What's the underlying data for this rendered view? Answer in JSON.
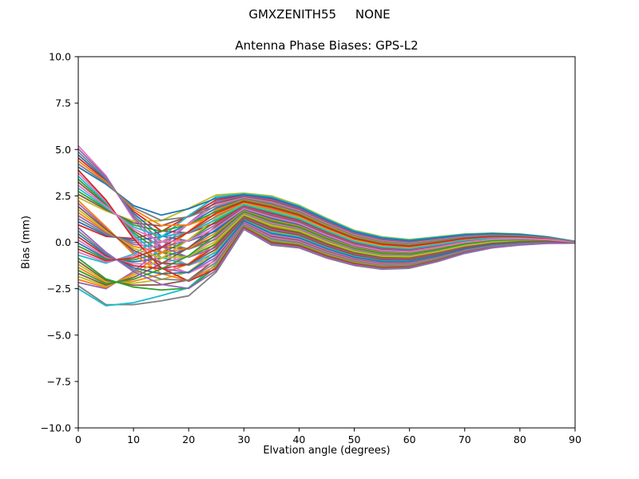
{
  "chart_data": {
    "type": "line",
    "suptitle": "GMXZENITH55     NONE",
    "title": "Antenna Phase Biases: GPS-L2",
    "xlabel": "Elvation angle (degrees)",
    "ylabel": "Bias (mm)",
    "xlim": [
      0,
      90
    ],
    "ylim": [
      -10,
      10
    ],
    "grid": false,
    "legend": "none",
    "background": "#ffffff",
    "xticks": [
      0,
      10,
      20,
      30,
      40,
      50,
      60,
      70,
      80,
      90
    ],
    "xtick_labels": [
      "0",
      "10",
      "20",
      "30",
      "40",
      "50",
      "60",
      "70",
      "80",
      "90"
    ],
    "yticks": [
      -10,
      -7.5,
      -5,
      -2.5,
      0,
      2.5,
      5,
      7.5,
      10
    ],
    "ytick_labels": [
      "−10.0",
      "−7.5",
      "−5.0",
      "−2.5",
      "0.0",
      "2.5",
      "5.0",
      "7.5",
      "10.0"
    ],
    "x": [
      0,
      5,
      10,
      15,
      20,
      25,
      30,
      35,
      40,
      45,
      50,
      55,
      60,
      65,
      70,
      75,
      80,
      85,
      90
    ],
    "envelope_top": [
      5.2,
      4.2,
      2.7,
      1.9,
      2.1,
      2.55,
      2.65,
      2.5,
      2.0,
      1.3,
      0.65,
      0.3,
      0.15,
      0.3,
      0.45,
      0.5,
      0.45,
      0.3,
      0.05
    ],
    "envelope_bottom": [
      -2.5,
      -3.5,
      -3.45,
      -3.2,
      -2.9,
      -1.6,
      0.7,
      -0.15,
      -0.3,
      -0.85,
      -1.25,
      -1.45,
      -1.4,
      -1.05,
      -0.6,
      -0.3,
      -0.15,
      -0.06,
      -0.05
    ],
    "blend": [
      0,
      0.1,
      0.3,
      0.6,
      0.85,
      1,
      1,
      1,
      1,
      1,
      1,
      1,
      1,
      1,
      1,
      1,
      1,
      1,
      1
    ],
    "series_count": 48,
    "series_pos_start": [
      0.319,
      0.149,
      0.298,
      0.447,
      0.596,
      0.745,
      1,
      0.021,
      0.17,
      0,
      0.468,
      0.617,
      0.766,
      0.915,
      0.043,
      0.191,
      0.34,
      0.489,
      0.638,
      0.787,
      0.936,
      0.064,
      0.213,
      0.362,
      0.511,
      0.66,
      0.809,
      0.957,
      0.085,
      0.234,
      0.383,
      0.532,
      0.681,
      0.83,
      0.979,
      0.106,
      0.255,
      0.404,
      0.553,
      0.702,
      0.851,
      0.894,
      0.128,
      0.277,
      0.426,
      0.574,
      0.723,
      0.872
    ],
    "series_pos_end": [
      0.553,
      0.383,
      0.66,
      0.936,
      0.191,
      0.468,
      0.213,
      0,
      0.277,
      0.106,
      0.83,
      0.085,
      0.362,
      0.638,
      0.915,
      0.17,
      0.447,
      0.723,
      1,
      0.255,
      0.532,
      0.809,
      0.064,
      0.34,
      0.617,
      0.894,
      0.149,
      0.426,
      0.702,
      0.979,
      0.234,
      0.511,
      0.787,
      0.043,
      0.319,
      0.596,
      0.872,
      0.128,
      0.404,
      0.681,
      0.957,
      0.745,
      0.489,
      0.766,
      0.021,
      0.298,
      0.574,
      0.851
    ],
    "line_colors": [
      "#1f77b4",
      "#ff7f0e",
      "#2ca02c",
      "#d62728",
      "#9467bd",
      "#8c564b",
      "#e377c2",
      "#7f7f7f",
      "#bcbd22",
      "#17becf"
    ],
    "line_width": 1.8,
    "axes_color": "#000000",
    "note": "48 overlapping antenna phase bias curves; per-series value v(j) = envelope_bottom[j] + (pos_start + (pos_end - pos_start) * blend[j]) * (envelope_top[j] - envelope_bottom[j])"
  }
}
